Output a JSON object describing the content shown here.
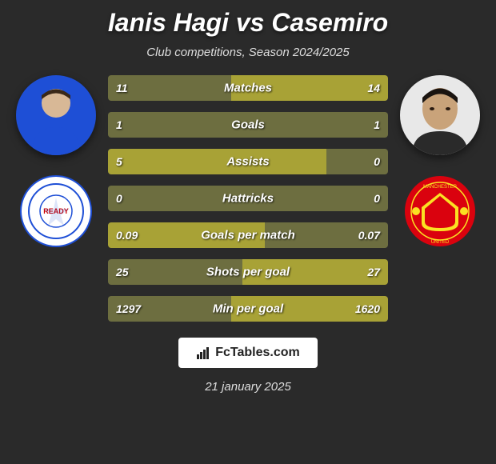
{
  "title": "Ianis Hagi vs Casemiro",
  "subtitle": "Club competitions, Season 2024/2025",
  "player_left": {
    "name": "Ianis Hagi",
    "avatar_bg": "#1e4fd6",
    "club_bg": "#ffffff",
    "club_accent": "#1e4fd6"
  },
  "player_right": {
    "name": "Casemiro",
    "avatar_bg": "#c9a37a",
    "club_bg": "#da020e",
    "club_accent": "#fbe122"
  },
  "bars": {
    "dominant_color": "#a8a236",
    "other_color": "#6d6e40",
    "neutral_color": "#6d6e40",
    "rows": [
      {
        "label": "Matches",
        "left": "11",
        "right": "14",
        "left_pct": 44,
        "right_pct": 56
      },
      {
        "label": "Goals",
        "left": "1",
        "right": "1",
        "left_pct": 50,
        "right_pct": 50
      },
      {
        "label": "Assists",
        "left": "5",
        "right": "0",
        "left_pct": 78,
        "right_pct": 22
      },
      {
        "label": "Hattricks",
        "left": "0",
        "right": "0",
        "left_pct": 50,
        "right_pct": 50
      },
      {
        "label": "Goals per match",
        "left": "0.09",
        "right": "0.07",
        "left_pct": 56,
        "right_pct": 44
      },
      {
        "label": "Shots per goal",
        "left": "25",
        "right": "27",
        "left_pct": 48,
        "right_pct": 52
      },
      {
        "label": "Min per goal",
        "left": "1297",
        "right": "1620",
        "left_pct": 44,
        "right_pct": 56
      }
    ]
  },
  "footer": {
    "brand": "FcTables.com",
    "date": "21 january 2025"
  }
}
